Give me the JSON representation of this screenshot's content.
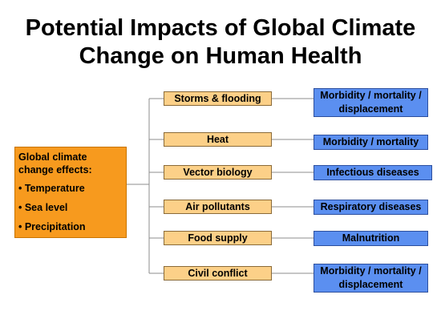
{
  "title": {
    "line1": "Potential Impacts of Global Climate",
    "line2": "Change on Human Health"
  },
  "source": {
    "heading": "Global climate change effects:",
    "items": [
      "• Temperature",
      "• Sea level",
      "• Precipitation"
    ]
  },
  "factors": [
    "Storms & flooding",
    "Heat",
    "Vector biology",
    "Air pollutants",
    "Food supply",
    "Civil conflict"
  ],
  "outcomes": [
    "Morbidity / mortality / displacement",
    "Morbidity / mortality",
    "Infectious diseases",
    "Respiratory diseases",
    "Malnutrition",
    "Morbidity / mortality / displacement"
  ],
  "colors": {
    "source_fill": "#f79a1e",
    "factor_fill": "#fcd088",
    "outcome_fill": "#5b8ff0",
    "connector": "#8c8c8c"
  }
}
